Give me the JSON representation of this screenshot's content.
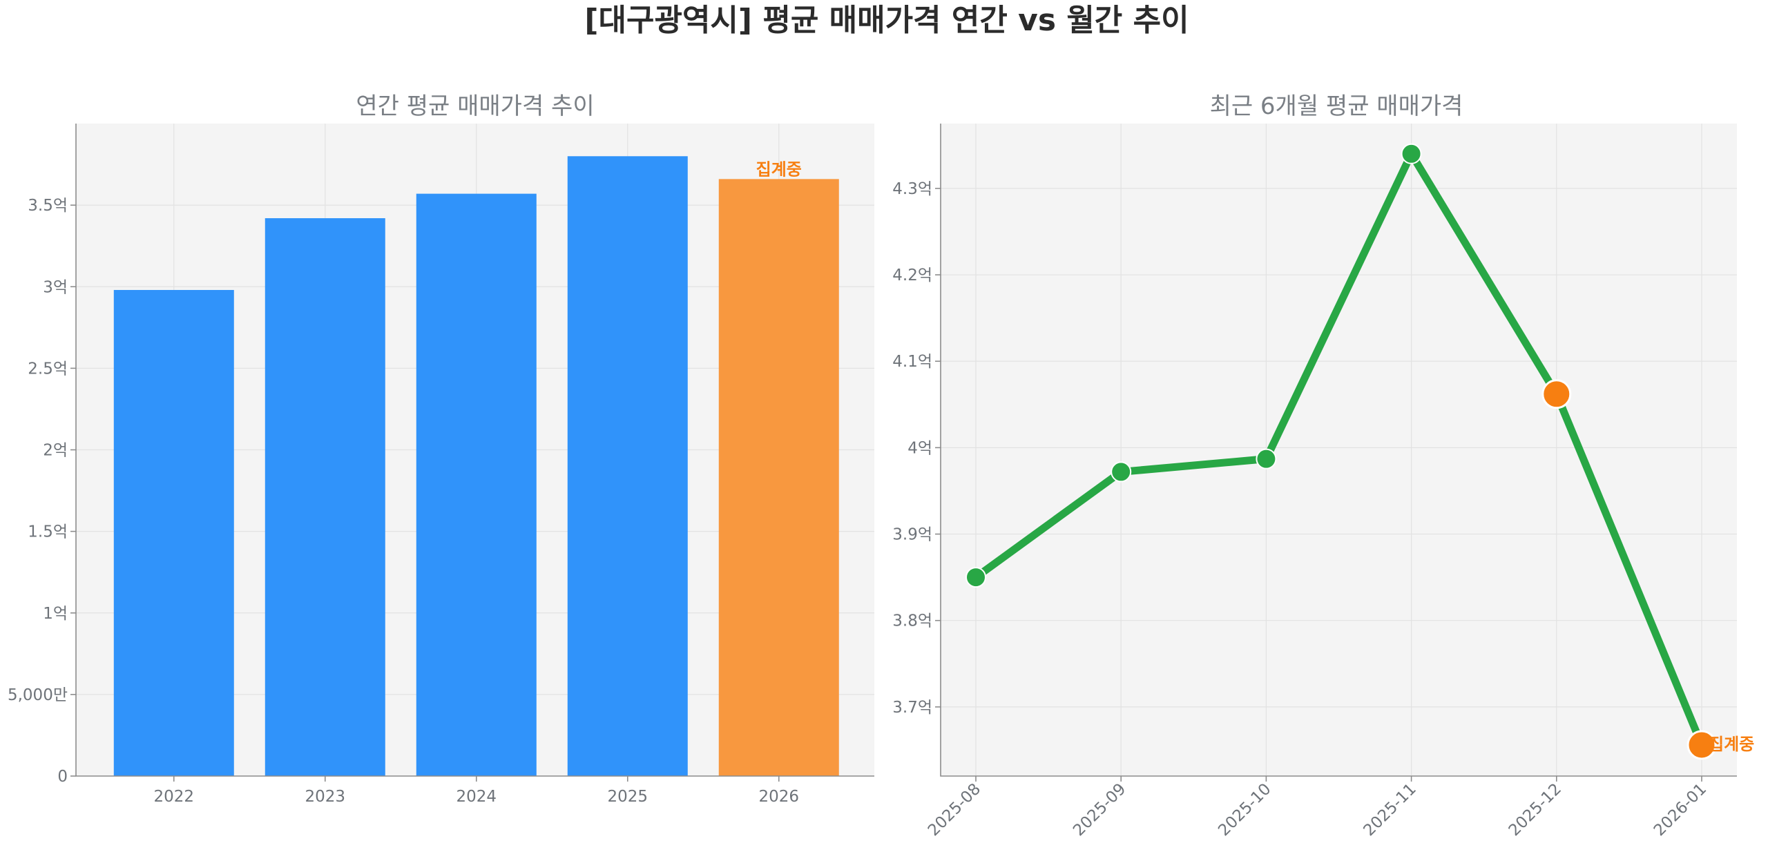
{
  "suptitle": "[대구광역시] 평균 매매가격 연간 vs 월간 추이",
  "colors": {
    "bar_complete": "#3093fa",
    "bar_partial": "#f8983f",
    "line": "#28a745",
    "partial_marker": "#f77f11",
    "annotation": "#f77f11"
  },
  "chart_data": [
    {
      "type": "bar",
      "title": "연간 평균 매매가격 추이",
      "xlabel": "",
      "ylabel": "",
      "categories": [
        "2022",
        "2023",
        "2024",
        "2025",
        "2026"
      ],
      "values": [
        29800,
        34200,
        35700,
        38000,
        36600
      ],
      "value_unit": "만원",
      "partial_index": 4,
      "annotations": [
        {
          "category": "2026",
          "text": "집계중"
        }
      ],
      "ylim": [
        0,
        40000
      ],
      "yticks": [
        {
          "value": 0,
          "label": "0"
        },
        {
          "value": 5000,
          "label": "5,000만"
        },
        {
          "value": 10000,
          "label": "1억"
        },
        {
          "value": 15000,
          "label": "1.5억"
        },
        {
          "value": 20000,
          "label": "2억"
        },
        {
          "value": 25000,
          "label": "2.5억"
        },
        {
          "value": 30000,
          "label": "3억"
        },
        {
          "value": 35000,
          "label": "3.5억"
        }
      ],
      "grid": true,
      "legend": "none"
    },
    {
      "type": "line",
      "title": "최근 6개월 평균 매매가격",
      "xlabel": "",
      "ylabel": "",
      "x": [
        "2025-08",
        "2025-09",
        "2025-10",
        "2025-11",
        "2025-12",
        "2026-01"
      ],
      "values": [
        38500,
        39720,
        39870,
        43400,
        40620,
        36560
      ],
      "value_unit": "만원",
      "partial_indices": [
        4,
        5
      ],
      "annotations": [
        {
          "x": "2026-01",
          "text": "집계중"
        }
      ],
      "ylim": [
        36200,
        43750
      ],
      "yticks": [
        {
          "value": 37000,
          "label": "3.7억"
        },
        {
          "value": 38000,
          "label": "3.8억"
        },
        {
          "value": 39000,
          "label": "3.9억"
        },
        {
          "value": 40000,
          "label": "4억"
        },
        {
          "value": 41000,
          "label": "4.1억"
        },
        {
          "value": 42000,
          "label": "4.2억"
        },
        {
          "value": 43000,
          "label": "4.3억"
        }
      ],
      "grid": true,
      "legend": "none"
    }
  ]
}
